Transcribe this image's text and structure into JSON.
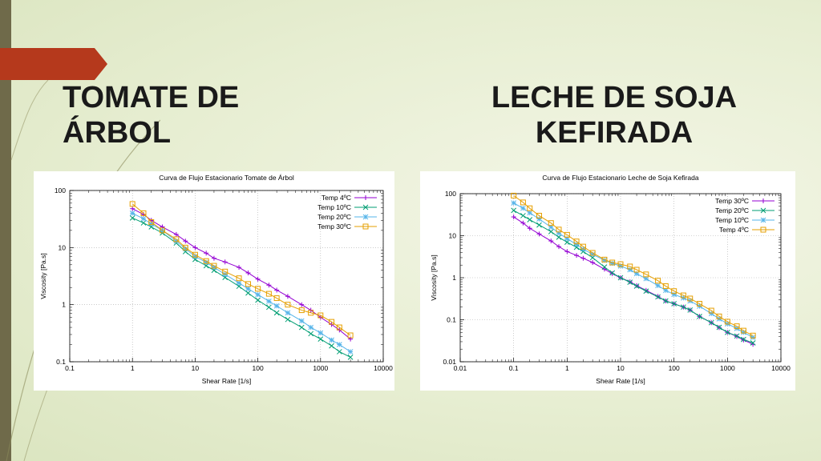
{
  "titles": {
    "left": "TOMATE DE ÁRBOL",
    "right_line1": "LECHE DE SOJA",
    "right_line2": "KEFIRADA"
  },
  "chart_data": [
    {
      "type": "line",
      "title": "Curva de Flujo Estacionario Tomate de Árbol",
      "xlabel": "Shear Rate [1/s]",
      "ylabel": "Viscosity [Pa.s]",
      "xscale": "log",
      "yscale": "log",
      "xlim": [
        0.1,
        10000
      ],
      "ylim": [
        0.1,
        100
      ],
      "xticks": [
        "0.1",
        "1",
        "10",
        "100",
        "1000",
        "10000"
      ],
      "yticks": [
        "0.1",
        "1",
        "10",
        "100"
      ],
      "grid": true,
      "legend_position": "top-right",
      "series": [
        {
          "name": "Temp 4ºC",
          "color": "#9400d3",
          "marker": "plus",
          "x": [
            1,
            1.5,
            2,
            3,
            5,
            7,
            10,
            15,
            20,
            30,
            50,
            70,
            100,
            150,
            200,
            300,
            500,
            700,
            1000,
            1500,
            2000,
            3000
          ],
          "y": [
            48,
            38,
            30,
            23,
            17,
            13,
            10,
            8,
            6.5,
            5.6,
            4.5,
            3.6,
            2.8,
            2.2,
            1.8,
            1.4,
            1.0,
            0.8,
            0.6,
            0.45,
            0.36,
            0.25
          ]
        },
        {
          "name": "Temp 10ºC",
          "color": "#009e73",
          "marker": "cross",
          "x": [
            1,
            1.5,
            2,
            3,
            5,
            7,
            10,
            15,
            20,
            30,
            50,
            70,
            100,
            150,
            200,
            300,
            500,
            700,
            1000,
            1500,
            2000,
            3000
          ],
          "y": [
            33,
            27,
            23,
            18,
            12,
            8.5,
            6.2,
            4.8,
            4,
            3,
            2.1,
            1.6,
            1.2,
            0.9,
            0.72,
            0.55,
            0.4,
            0.31,
            0.25,
            0.19,
            0.15,
            0.12
          ]
        },
        {
          "name": "Temp 20ºC",
          "color": "#56b4e9",
          "marker": "star",
          "x": [
            1,
            1.5,
            2,
            3,
            5,
            7,
            10,
            15,
            20,
            30,
            50,
            70,
            100,
            150,
            200,
            300,
            500,
            700,
            1000,
            1500,
            2000,
            3000
          ],
          "y": [
            40,
            32,
            26,
            20,
            13,
            9.5,
            7,
            5.5,
            4.5,
            3.4,
            2.4,
            1.9,
            1.5,
            1.15,
            0.95,
            0.72,
            0.52,
            0.4,
            0.32,
            0.24,
            0.2,
            0.15
          ]
        },
        {
          "name": "Temp 30ºC",
          "color": "#e69f00",
          "marker": "square",
          "x": [
            1,
            1.5,
            2,
            3,
            5,
            7,
            10,
            15,
            20,
            30,
            50,
            70,
            100,
            150,
            200,
            300,
            500,
            700,
            1000,
            1500,
            2000,
            3000
          ],
          "y": [
            58,
            40,
            28,
            20,
            14,
            10,
            7.5,
            5.8,
            4.8,
            3.8,
            2.9,
            2.3,
            1.9,
            1.55,
            1.3,
            1.0,
            0.8,
            0.72,
            0.65,
            0.5,
            0.4,
            0.29
          ]
        }
      ]
    },
    {
      "type": "line",
      "title": "Curva de Flujo Estacionario Leche de Soja Kefirada",
      "xlabel": "Shear Rate [1/s]",
      "ylabel": "Viscosity [Pa.s]",
      "xscale": "log",
      "yscale": "log",
      "xlim": [
        0.01,
        10000
      ],
      "ylim": [
        0.01,
        100
      ],
      "xticks": [
        "0.01",
        "0.1",
        "1",
        "10",
        "100",
        "1000",
        "10000"
      ],
      "yticks": [
        "0.01",
        "0.1",
        "1",
        "10",
        "100"
      ],
      "grid": true,
      "legend_position": "top-right",
      "series": [
        {
          "name": "Temp 30ºC",
          "color": "#9400d3",
          "marker": "plus",
          "x": [
            0.1,
            0.15,
            0.2,
            0.3,
            0.5,
            0.7,
            1,
            1.5,
            2,
            3,
            5,
            7,
            10,
            15,
            20,
            30,
            50,
            70,
            100,
            150,
            200,
            300,
            500,
            700,
            1000,
            1500,
            2000,
            3000
          ],
          "y": [
            28,
            20,
            15,
            11,
            7.5,
            5.5,
            4.2,
            3.4,
            2.9,
            2.3,
            1.6,
            1.25,
            1.0,
            0.8,
            0.65,
            0.5,
            0.36,
            0.28,
            0.24,
            0.2,
            0.17,
            0.12,
            0.085,
            0.065,
            0.05,
            0.04,
            0.033,
            0.026
          ]
        },
        {
          "name": "Temp 20ºC",
          "color": "#009e73",
          "marker": "cross",
          "x": [
            0.1,
            0.15,
            0.2,
            0.3,
            0.5,
            0.7,
            1,
            1.5,
            2,
            3,
            5,
            7,
            10,
            15,
            20,
            30,
            50,
            70,
            100,
            150,
            200,
            300,
            500,
            700,
            1000,
            1500,
            2000,
            3000
          ],
          "y": [
            40,
            30,
            24,
            18,
            12.5,
            9.2,
            7,
            5.3,
            4.2,
            3,
            1.8,
            1.3,
            1.0,
            0.78,
            0.63,
            0.48,
            0.35,
            0.28,
            0.24,
            0.2,
            0.17,
            0.12,
            0.085,
            0.066,
            0.05,
            0.041,
            0.034,
            0.028
          ]
        },
        {
          "name": "Temp 10ºC",
          "color": "#56b4e9",
          "marker": "star",
          "x": [
            0.1,
            0.15,
            0.2,
            0.3,
            0.5,
            0.7,
            1,
            1.5,
            2,
            3,
            5,
            7,
            10,
            15,
            20,
            30,
            50,
            70,
            100,
            150,
            200,
            300,
            500,
            700,
            1000,
            1500,
            2000,
            3000
          ],
          "y": [
            60,
            45,
            35,
            25,
            16,
            11.5,
            8.5,
            6.2,
            4.8,
            3.6,
            2.6,
            2.2,
            1.9,
            1.55,
            1.25,
            0.95,
            0.65,
            0.5,
            0.4,
            0.33,
            0.28,
            0.21,
            0.14,
            0.105,
            0.08,
            0.062,
            0.05,
            0.038
          ]
        },
        {
          "name": "Temp 4ºC",
          "color": "#e69f00",
          "marker": "square",
          "x": [
            0.1,
            0.15,
            0.2,
            0.3,
            0.5,
            0.7,
            1,
            1.5,
            2,
            3,
            5,
            7,
            10,
            15,
            20,
            30,
            50,
            70,
            100,
            150,
            200,
            300,
            500,
            700,
            1000,
            1500,
            2000,
            3000
          ],
          "y": [
            90,
            62,
            45,
            30,
            20,
            14,
            10.5,
            7.3,
            5.5,
            3.9,
            2.7,
            2.3,
            2.1,
            1.85,
            1.55,
            1.2,
            0.85,
            0.63,
            0.48,
            0.38,
            0.32,
            0.24,
            0.165,
            0.12,
            0.09,
            0.07,
            0.055,
            0.042
          ]
        }
      ]
    }
  ]
}
